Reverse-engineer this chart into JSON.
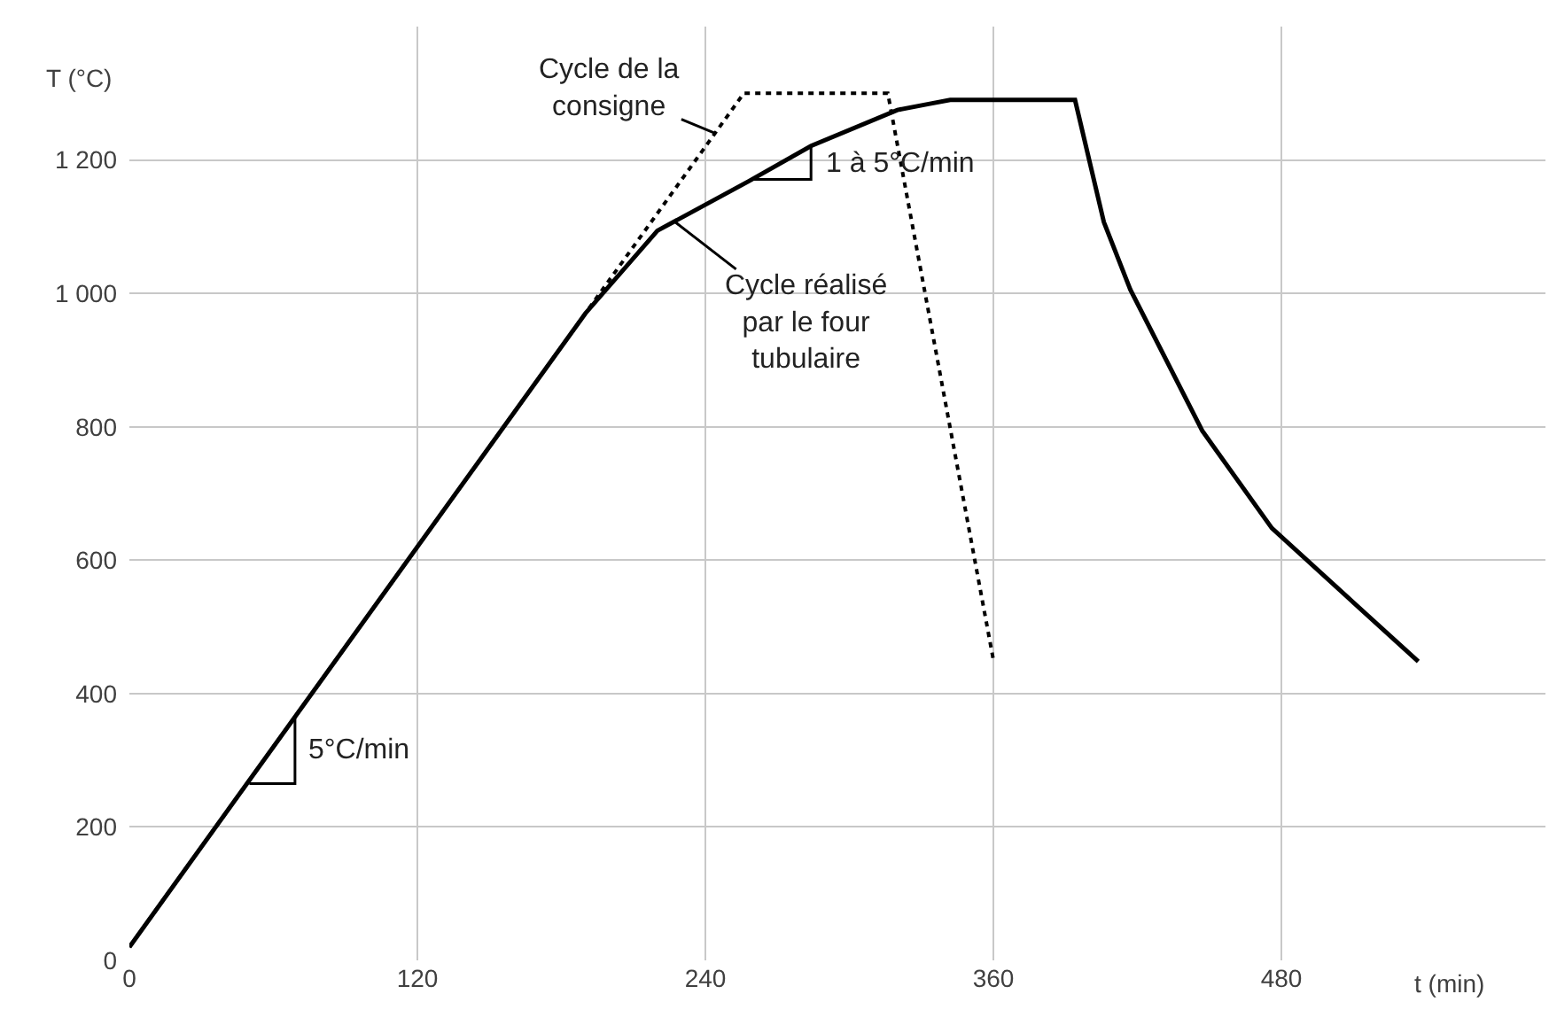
{
  "chart_data": {
    "type": "line",
    "xlabel": "t (min)",
    "ylabel": "T (°C)",
    "xlim": [
      0,
      590
    ],
    "ylim": [
      0,
      1400
    ],
    "xticks": [
      0,
      120,
      240,
      360,
      480
    ],
    "yticks": [
      0,
      200,
      400,
      600,
      800,
      {
        "value": 1000,
        "label": "1 000"
      },
      {
        "value": 1200,
        "label": "1 200"
      }
    ],
    "grid": true,
    "marker": "none",
    "series": [
      {
        "color": "#000000",
        "line_style": "solid",
        "x": [
          0,
          190,
          220,
          258,
          284,
          320,
          333,
          342,
          394,
          406,
          417,
          447,
          476,
          537
        ],
        "values": [
          20,
          970,
          1094,
          1168,
          1221,
          1275,
          1284,
          1290,
          1290,
          1107,
          1006,
          794,
          648,
          448
        ]
      },
      {
        "color": "#000000",
        "line_style": "dotted",
        "x": [
          0,
          256,
          316,
          360
        ],
        "values": [
          20,
          1300,
          1300,
          450
        ]
      }
    ],
    "annotations": [
      {
        "text": "Cycle de la consigne",
        "x": 244,
        "y": 1240
      },
      {
        "text": "Cycle réalisé par le four tubulaire",
        "x": 227,
        "y": 1108
      },
      {
        "text": "5°C/min",
        "x": 69,
        "y": 365
      },
      {
        "text": "1 à 5°C/min",
        "x": 284,
        "y": 1221
      }
    ]
  }
}
